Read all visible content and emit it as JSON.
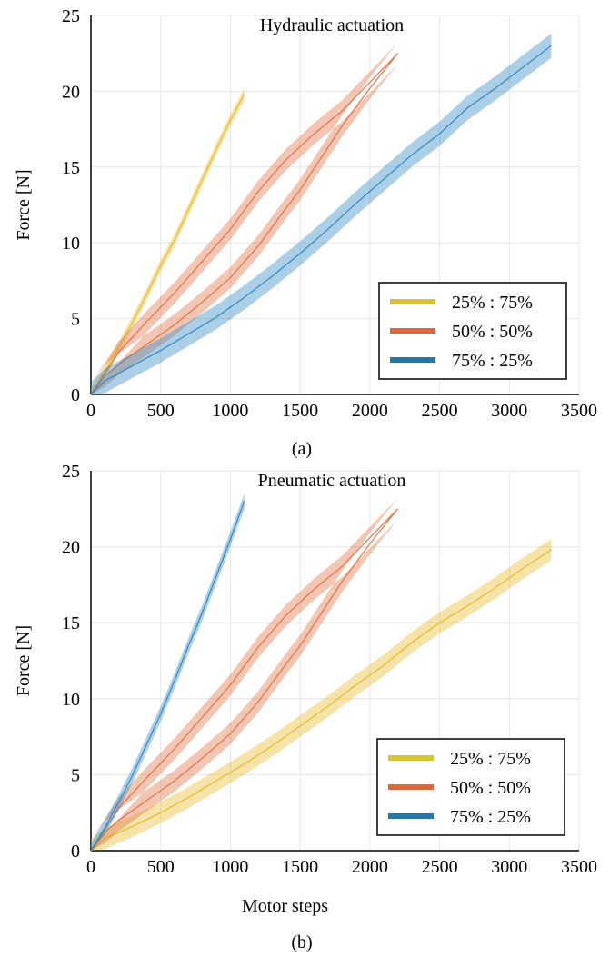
{
  "chart_data": [
    {
      "type": "line",
      "title": "Hydraulic actuation",
      "caption": "(a)",
      "xlabel": "",
      "ylabel": "Force [N]",
      "xlim": [
        0,
        3500
      ],
      "ylim": [
        0,
        25
      ],
      "xticks": [
        0,
        500,
        1000,
        1500,
        2000,
        2500,
        3000,
        3500
      ],
      "yticks": [
        0,
        5,
        10,
        15,
        20,
        25
      ],
      "grid": true,
      "legend_position": "bottom-right",
      "series": [
        {
          "name": "25% : 75%",
          "color": "#E6B825",
          "legend_color": "#D4C43A",
          "band_halfwidth": 0.4,
          "x": [
            0,
            100,
            200,
            300,
            400,
            500,
            600,
            700,
            800,
            900,
            1000,
            1100
          ],
          "y": [
            0,
            1.5,
            3.1,
            4.8,
            6.6,
            8.5,
            10.2,
            12.2,
            14.2,
            16.2,
            18.1,
            19.8
          ]
        },
        {
          "name": "50% : 50%",
          "color": "#E07040",
          "legend_color": "#D9693A",
          "band_halfwidth": 0.7,
          "x": [
            0,
            100,
            200,
            400,
            600,
            800,
            1000,
            1200,
            1400,
            1500,
            1600,
            1800,
            2000,
            2200,
            2200,
            2000,
            1800,
            1600,
            1400,
            1200,
            1000,
            800,
            600,
            400,
            200,
            0
          ],
          "y": [
            0,
            1.2,
            2.0,
            3.3,
            4.6,
            6.1,
            7.7,
            9.8,
            12.3,
            13.5,
            14.9,
            17.7,
            20.2,
            22.5,
            22.5,
            20.6,
            18.7,
            17.2,
            15.5,
            13.4,
            10.9,
            8.8,
            6.7,
            4.8,
            2.8,
            0
          ]
        },
        {
          "name": "75% : 25%",
          "color": "#2E86C1",
          "legend_color": "#2676A8",
          "band_halfwidth": 0.8,
          "x": [
            0,
            100,
            300,
            500,
            700,
            900,
            1100,
            1300,
            1500,
            1700,
            1900,
            2100,
            2300,
            2500,
            2700,
            2900,
            3100,
            3300
          ],
          "y": [
            0,
            0.9,
            1.9,
            2.9,
            4.0,
            5.1,
            6.4,
            7.8,
            9.3,
            10.9,
            12.6,
            14.2,
            15.8,
            17.2,
            18.9,
            20.2,
            21.6,
            23.0
          ]
        }
      ]
    },
    {
      "type": "line",
      "title": "Pneumatic actuation",
      "caption": "(b)",
      "xlabel": "Motor steps",
      "ylabel": "Force [N]",
      "xlim": [
        0,
        3500
      ],
      "ylim": [
        0,
        25
      ],
      "xticks": [
        0,
        500,
        1000,
        1500,
        2000,
        2500,
        3000,
        3500
      ],
      "yticks": [
        0,
        5,
        10,
        15,
        20,
        25
      ],
      "grid": true,
      "legend_position": "bottom-right",
      "series": [
        {
          "name": "25% : 75%",
          "color": "#E6B825",
          "legend_color": "#D4C43A",
          "band_halfwidth": 0.7,
          "x": [
            0,
            100,
            300,
            500,
            700,
            900,
            1100,
            1300,
            1500,
            1700,
            1900,
            2100,
            2300,
            2500,
            2700,
            2900,
            3100,
            3300
          ],
          "y": [
            0,
            0.8,
            1.6,
            2.5,
            3.5,
            4.6,
            5.7,
            6.9,
            8.2,
            9.5,
            10.9,
            12.2,
            13.7,
            15.0,
            16.1,
            17.3,
            18.6,
            19.8
          ]
        },
        {
          "name": "50% : 50%",
          "color": "#E07040",
          "legend_color": "#D9693A",
          "band_halfwidth": 0.7,
          "x": [
            0,
            100,
            200,
            400,
            600,
            800,
            1000,
            1200,
            1400,
            1500,
            1600,
            1800,
            2000,
            2200,
            2200,
            2000,
            1800,
            1600,
            1400,
            1200,
            1000,
            800,
            600,
            400,
            200,
            0
          ],
          "y": [
            0,
            1.2,
            2.0,
            3.3,
            4.6,
            6.1,
            7.7,
            9.8,
            12.3,
            13.5,
            14.9,
            17.7,
            20.2,
            22.5,
            22.5,
            20.6,
            18.7,
            17.2,
            15.5,
            13.4,
            10.9,
            8.8,
            6.7,
            4.8,
            2.8,
            0
          ]
        },
        {
          "name": "75% : 25%",
          "color": "#2E86C1",
          "legend_color": "#2676A8",
          "band_halfwidth": 0.5,
          "x": [
            0,
            100,
            200,
            300,
            400,
            500,
            600,
            700,
            800,
            900,
            1000,
            1100
          ],
          "y": [
            0,
            1.5,
            3.2,
            5.0,
            7.0,
            9.0,
            11.2,
            13.5,
            15.7,
            18.1,
            20.5,
            23.0
          ]
        }
      ]
    }
  ]
}
